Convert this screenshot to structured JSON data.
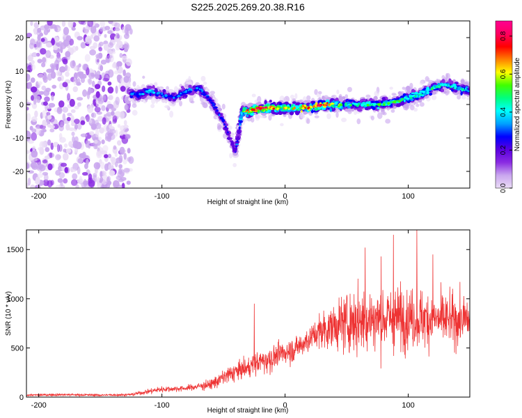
{
  "title": "S225.2025.269.20.38.R16",
  "chart_data": [
    {
      "type": "heatmap",
      "name": "spectrogram",
      "xlabel": "Height of straight line (km)",
      "ylabel": "Frequency (Hz)",
      "xlim": [
        -210,
        150
      ],
      "ylim": [
        -25,
        25
      ],
      "x_ticks": [
        -200,
        -100,
        0,
        100
      ],
      "y_ticks": [
        20,
        10,
        0,
        -10,
        -20
      ],
      "colorbar": {
        "label": "Normalized spectral amplitude",
        "range": [
          0.0,
          0.88
        ],
        "ticks": [
          0.0,
          0.2,
          0.4,
          0.6,
          0.8
        ],
        "colors": [
          "#eadcf6",
          "#c9a6ee",
          "#8a2be2",
          "#5a00e0",
          "#0000ff",
          "#00a0ff",
          "#00ffff",
          "#00ff80",
          "#40ff00",
          "#ffff00",
          "#ff8000",
          "#ff0000",
          "#ff0060",
          "#ff0090"
        ]
      },
      "ridge": {
        "x": [
          -120,
          -110,
          -100,
          -90,
          -80,
          -70,
          -60,
          -50,
          -45,
          -40,
          -35,
          -30,
          -20,
          -10,
          0,
          10,
          20,
          30,
          40,
          50,
          60,
          70,
          80,
          90,
          100,
          110,
          120,
          130,
          140,
          150
        ],
        "freq": [
          3,
          4,
          3,
          2,
          4,
          5,
          1,
          -5,
          -10,
          -14,
          -2,
          -2,
          -1,
          -1,
          -1,
          -1,
          -1,
          0,
          0,
          0,
          0,
          0,
          0,
          1,
          2,
          3,
          5,
          6,
          5,
          4
        ],
        "amp": [
          0.35,
          0.4,
          0.3,
          0.3,
          0.35,
          0.35,
          0.3,
          0.3,
          0.25,
          0.25,
          0.5,
          0.7,
          0.8,
          0.7,
          0.6,
          0.65,
          0.75,
          0.8,
          0.65,
          0.5,
          0.45,
          0.5,
          0.5,
          0.55,
          0.45,
          0.5,
          0.5,
          0.45,
          0.45,
          0.4
        ]
      },
      "noise_region_x": [
        -210,
        -125
      ]
    },
    {
      "type": "line",
      "name": "snr",
      "xlabel": "Height of straight line (km)",
      "ylabel": "SNR (10 * v/v)",
      "xlim": [
        -210,
        150
      ],
      "ylim": [
        0,
        1700
      ],
      "x_ticks": [
        -200,
        -100,
        0,
        100
      ],
      "y_ticks": [
        0,
        500,
        1000,
        1500
      ],
      "series": [
        {
          "name": "SNR",
          "color": "#ee3333",
          "x": [
            -210,
            -180,
            -150,
            -125,
            -110,
            -100,
            -80,
            -60,
            -50,
            -40,
            -30,
            -25,
            -20,
            -10,
            0,
            10,
            20,
            30,
            40,
            50,
            60,
            70,
            80,
            90,
            100,
            110,
            120,
            130,
            140,
            150
          ],
          "mean": [
            20,
            25,
            20,
            25,
            60,
            80,
            90,
            130,
            200,
            260,
            300,
            340,
            360,
            400,
            460,
            500,
            600,
            680,
            720,
            760,
            780,
            790,
            800,
            800,
            810,
            800,
            790,
            780,
            780,
            790
          ],
          "spread": [
            15,
            20,
            15,
            20,
            40,
            50,
            40,
            80,
            120,
            150,
            150,
            160,
            180,
            200,
            180,
            200,
            200,
            280,
            350,
            450,
            500,
            500,
            480,
            500,
            450,
            450,
            420,
            400,
            380,
            350
          ],
          "spikes": [
            [
              -25,
              950
            ],
            [
              65,
              1520
            ],
            [
              88,
              1650
            ],
            [
              107,
              1700
            ],
            [
              120,
              1450
            ],
            [
              78,
              1430
            ]
          ]
        }
      ]
    }
  ]
}
